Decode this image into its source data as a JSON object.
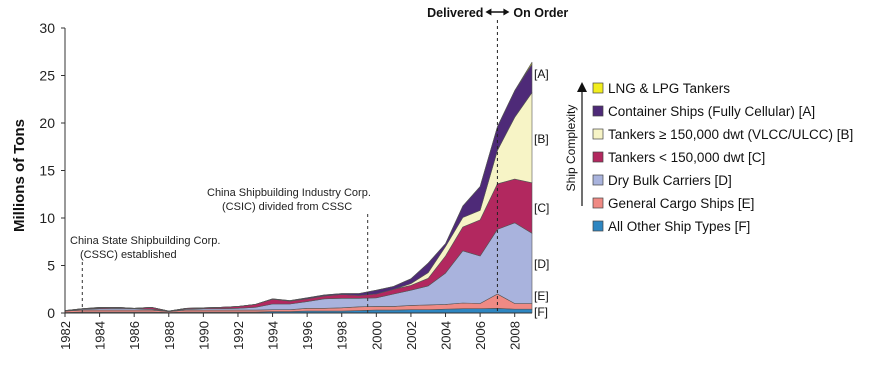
{
  "chart_data": {
    "type": "area",
    "stacked": true,
    "ylabel": "Millions of Tons",
    "ylim": [
      0,
      30
    ],
    "yticks": [
      0,
      5,
      10,
      15,
      20,
      25,
      30
    ],
    "xlim": [
      1982,
      2009
    ],
    "xticks": [
      1982,
      1984,
      1986,
      1988,
      1990,
      1992,
      1994,
      1996,
      1998,
      2000,
      2002,
      2004,
      2006,
      2008
    ],
    "x": [
      1982,
      1983,
      1984,
      1985,
      1986,
      1987,
      1988,
      1989,
      1990,
      1991,
      1992,
      1993,
      1994,
      1995,
      1996,
      1997,
      1998,
      1999,
      2000,
      2001,
      2002,
      2003,
      2004,
      2005,
      2006,
      2007,
      2008,
      2009
    ],
    "series": [
      {
        "name": "All Other Ship Types",
        "code": "[F]",
        "color": "#2e86c1",
        "values": [
          0.05,
          0.1,
          0.1,
          0.1,
          0.1,
          0.1,
          0.05,
          0.1,
          0.1,
          0.1,
          0.1,
          0.1,
          0.15,
          0.15,
          0.2,
          0.2,
          0.2,
          0.25,
          0.3,
          0.3,
          0.35,
          0.35,
          0.4,
          0.45,
          0.45,
          0.5,
          0.4,
          0.4
        ]
      },
      {
        "name": "General Cargo Ships",
        "code": "[E]",
        "color": "#ef8a84",
        "values": [
          0.15,
          0.2,
          0.2,
          0.2,
          0.2,
          0.2,
          0.1,
          0.2,
          0.2,
          0.2,
          0.2,
          0.2,
          0.2,
          0.2,
          0.3,
          0.3,
          0.35,
          0.4,
          0.4,
          0.4,
          0.45,
          0.5,
          0.5,
          0.6,
          0.55,
          1.5,
          0.6,
          0.6
        ]
      },
      {
        "name": "Dry Bulk Carriers",
        "code": "[D]",
        "color": "#a9b3dd",
        "values": [
          0.0,
          0.1,
          0.15,
          0.2,
          0.15,
          0.1,
          0.05,
          0.1,
          0.15,
          0.15,
          0.2,
          0.3,
          0.6,
          0.6,
          0.7,
          1.0,
          1.0,
          0.9,
          0.9,
          1.3,
          1.6,
          2.0,
          3.3,
          5.5,
          5.0,
          6.8,
          8.5,
          7.4
        ]
      },
      {
        "name": "Tankers < 150,000 dwt",
        "code": "[C]",
        "color": "#b2285f",
        "values": [
          0.05,
          0.05,
          0.1,
          0.1,
          0.05,
          0.2,
          0.0,
          0.1,
          0.1,
          0.15,
          0.2,
          0.3,
          0.5,
          0.3,
          0.3,
          0.3,
          0.4,
          0.3,
          0.4,
          0.5,
          0.5,
          0.8,
          1.8,
          2.5,
          3.8,
          4.8,
          4.6,
          5.3
        ]
      },
      {
        "name": "Tankers ≥ 150,000 dwt (VLCC/ULCC)",
        "code": "[B]",
        "color": "#f7f4c6",
        "values": [
          0.0,
          0.0,
          0.0,
          0.0,
          0.0,
          0.0,
          0.0,
          0.0,
          0.0,
          0.0,
          0.0,
          0.0,
          0.0,
          0.0,
          0.0,
          0.0,
          0.0,
          0.0,
          0.0,
          0.0,
          0.2,
          0.6,
          1.0,
          1.0,
          1.0,
          3.5,
          6.5,
          9.5
        ]
      },
      {
        "name": "Container Ships (Fully Cellular)",
        "code": "[A]",
        "color": "#4e2a78",
        "values": [
          0.0,
          0.0,
          0.05,
          0.0,
          0.0,
          0.0,
          0.0,
          0.0,
          0.0,
          0.0,
          0.0,
          0.0,
          0.05,
          0.05,
          0.1,
          0.1,
          0.1,
          0.2,
          0.4,
          0.3,
          0.5,
          1.0,
          0.3,
          1.2,
          2.5,
          2.5,
          2.8,
          3.0
        ]
      },
      {
        "name": "LNG & LPG Tankers",
        "code": "",
        "color": "#f2ee1e",
        "values": [
          0.0,
          0.0,
          0.0,
          0.0,
          0.0,
          0.0,
          0.0,
          0.0,
          0.0,
          0.0,
          0.0,
          0.0,
          0.0,
          0.0,
          0.0,
          0.0,
          0.0,
          0.0,
          0.0,
          0.0,
          0.0,
          0.0,
          0.0,
          0.0,
          0.0,
          0.0,
          0.0,
          0.2
        ]
      }
    ],
    "legend_position": "right",
    "annotations": [
      {
        "x": 1983,
        "lines": [
          "China State Shipbuilding Corp.",
          "(CSSC) established"
        ]
      },
      {
        "x": 1999.5,
        "lines": [
          "China Shipbuilding Industry Corp.",
          "(CSIC) divided from CSSC"
        ]
      }
    ],
    "divider": {
      "x": 2007,
      "left_label": "Delivered",
      "right_label": "On Order"
    }
  },
  "legend": {
    "items": [
      {
        "label": "LNG & LPG Tankers",
        "color": "#f2ee1e"
      },
      {
        "label": "Container Ships (Fully Cellular) [A]",
        "color": "#4e2a78"
      },
      {
        "label": "Tankers ≥ 150,000 dwt (VLCC/ULCC) [B]",
        "color": "#f7f4c6"
      },
      {
        "label": "Tankers < 150,000 dwt [C]",
        "color": "#b2285f"
      },
      {
        "label": "Dry Bulk Carriers [D]",
        "color": "#a9b3dd"
      },
      {
        "label": "General Cargo Ships [E]",
        "color": "#ef8a84"
      },
      {
        "label": "All Other Ship Types [F]",
        "color": "#2e86c1"
      }
    ],
    "complexity_label": "Ship Complexity"
  }
}
